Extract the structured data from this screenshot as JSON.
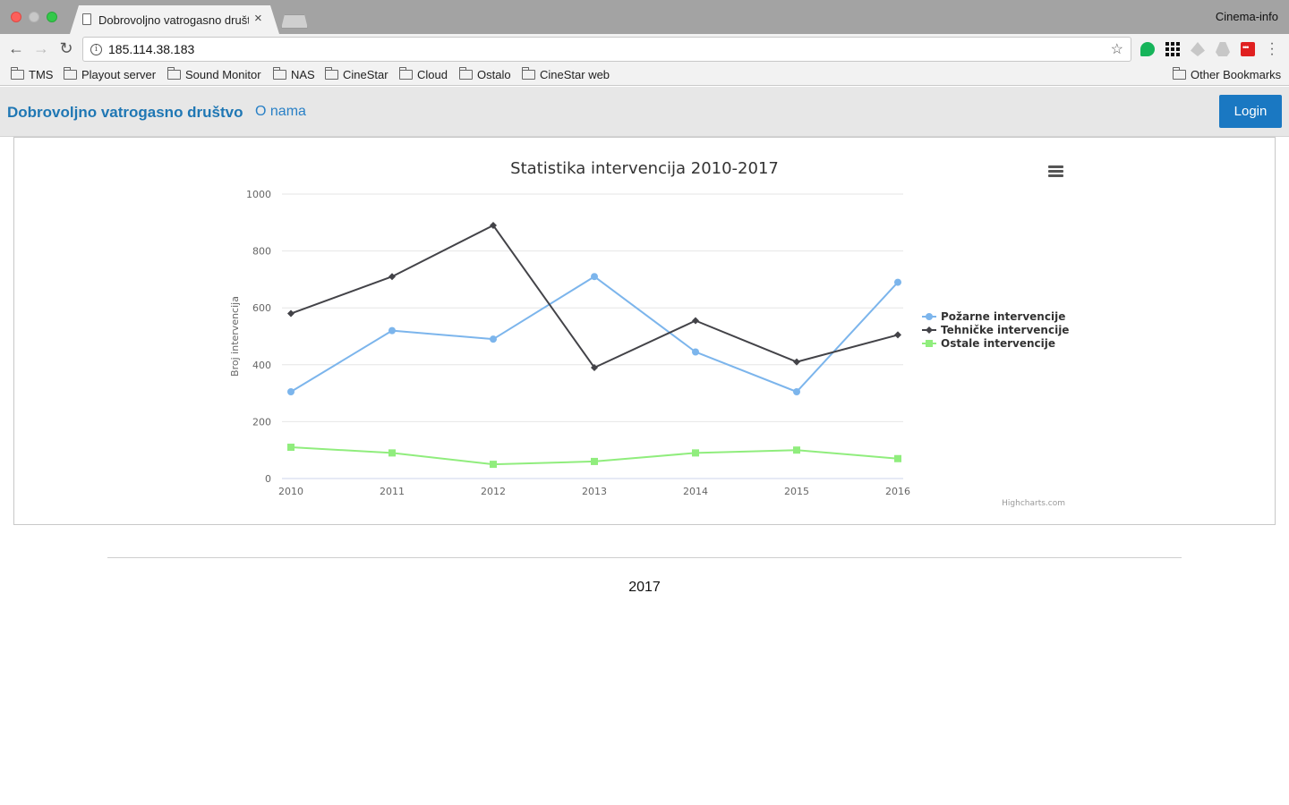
{
  "browser": {
    "tab_title": "Dobrovoljno vatrogasno društvo",
    "profile_name": "Cinema-info",
    "url": "185.114.38.183",
    "bookmarks": [
      "TMS",
      "Playout server",
      "Sound Monitor",
      "NAS",
      "CineStar",
      "Cloud",
      "Ostalo",
      "CineStar web"
    ],
    "other_bookmarks": "Other Bookmarks"
  },
  "site": {
    "brand": "Dobrovoljno vatrogasno društvo",
    "nav_about": "O nama",
    "login_label": "Login"
  },
  "chart_data": {
    "type": "line",
    "title": "Statistika intervencija 2010-2017",
    "ylabel": "Broj intervencija",
    "xlabel": "",
    "ylim": [
      0,
      1000
    ],
    "yticks": [
      0,
      200,
      400,
      600,
      800,
      1000
    ],
    "categories": [
      "2010",
      "2011",
      "2012",
      "2013",
      "2014",
      "2015",
      "2016"
    ],
    "grid": true,
    "legend": "right",
    "credits": "Highcharts.com",
    "series": [
      {
        "name": "Požarne intervencije",
        "color": "#7cb5ec",
        "marker": "circle",
        "values": [
          305,
          520,
          490,
          710,
          445,
          305,
          690
        ]
      },
      {
        "name": "Tehničke intervencije",
        "color": "#434348",
        "marker": "diamond",
        "values": [
          580,
          710,
          890,
          390,
          555,
          410,
          505
        ]
      },
      {
        "name": "Ostale intervencije",
        "color": "#90ed7d",
        "marker": "square",
        "values": [
          110,
          90,
          50,
          60,
          90,
          100,
          70
        ]
      }
    ]
  },
  "footer": {
    "year": "2017"
  }
}
